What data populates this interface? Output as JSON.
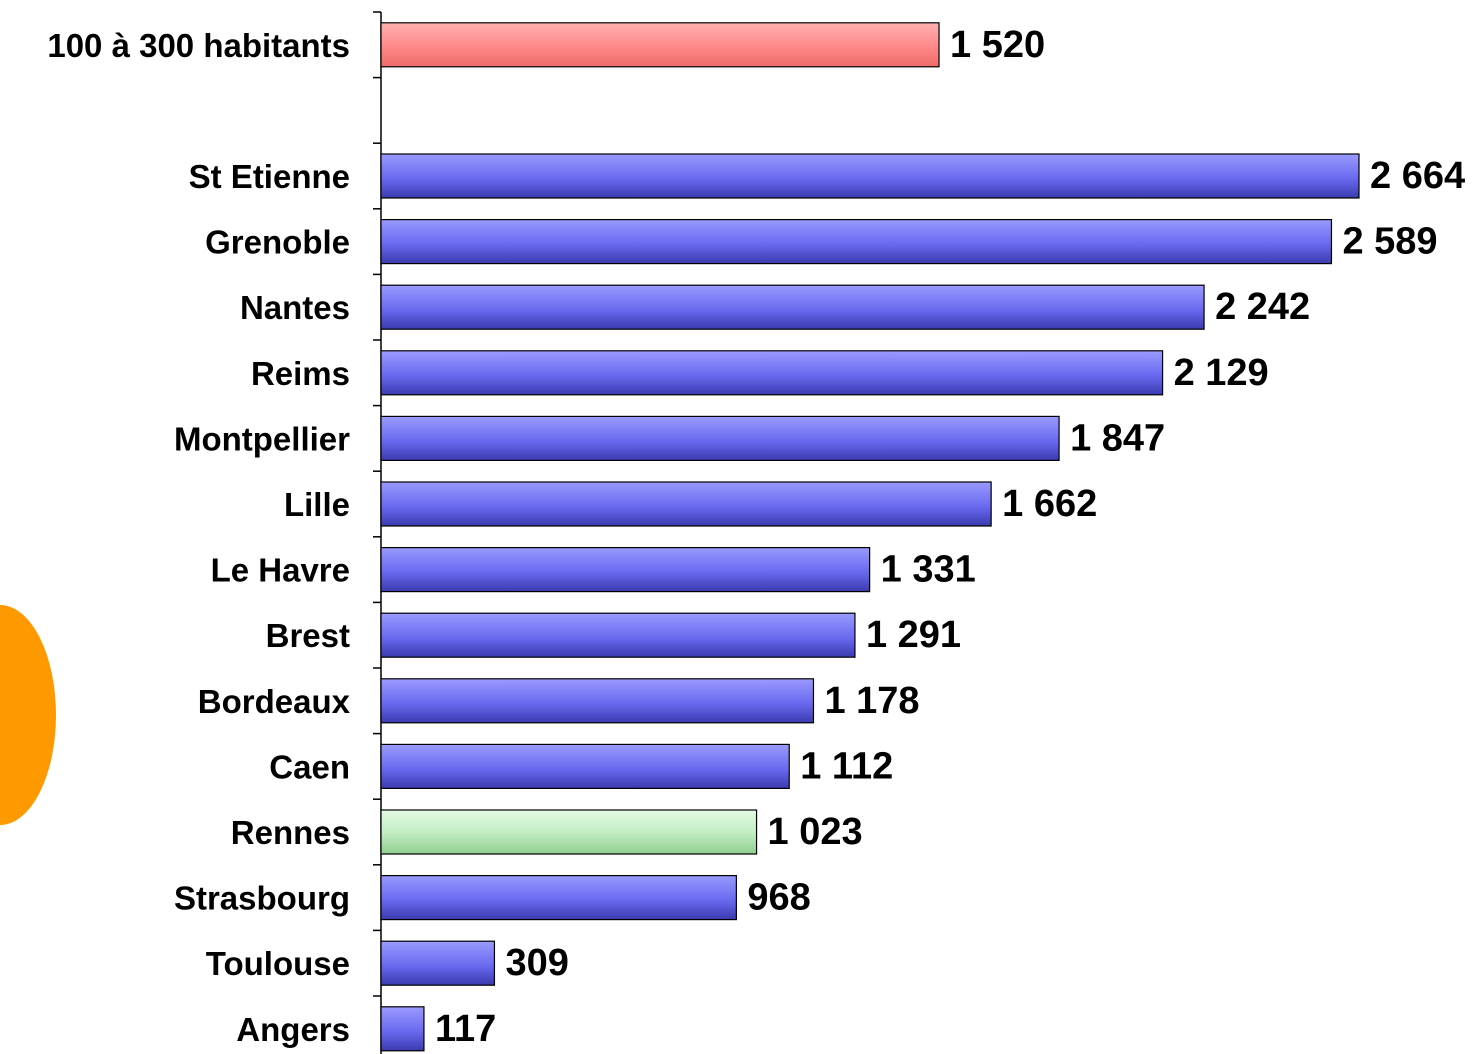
{
  "chart_data": {
    "type": "bar",
    "orientation": "horizontal",
    "categories": [
      "100 à 300 habitants",
      "",
      "St Etienne",
      "Grenoble",
      "Nantes",
      "Reims",
      "Montpellier",
      "Lille",
      "Le Havre",
      "Brest",
      "Bordeaux",
      "Caen",
      "Rennes",
      "Strasbourg",
      "Toulouse",
      "Angers"
    ],
    "values": [
      1520,
      null,
      2664,
      2589,
      2242,
      2129,
      1847,
      1662,
      1331,
      1291,
      1178,
      1112,
      1023,
      968,
      309,
      117
    ],
    "value_labels": [
      "1 520",
      "",
      "2 664",
      "2 589",
      "2 242",
      "2 129",
      "1 847",
      "1 662",
      "1 331",
      "1 291",
      "1 178",
      "1 112",
      "1 023",
      "968",
      "309",
      "117"
    ],
    "bar_colors": {
      "default": "#6666ee",
      "100 à 300 habitants": "#ff8080",
      "Rennes": "#b3e6b3"
    },
    "title": "",
    "xlabel": "",
    "ylabel": "",
    "xlim": [
      0,
      2664
    ],
    "grid": false,
    "legend": "none"
  },
  "decoration": {
    "side_shape_color": "#ff9900"
  }
}
